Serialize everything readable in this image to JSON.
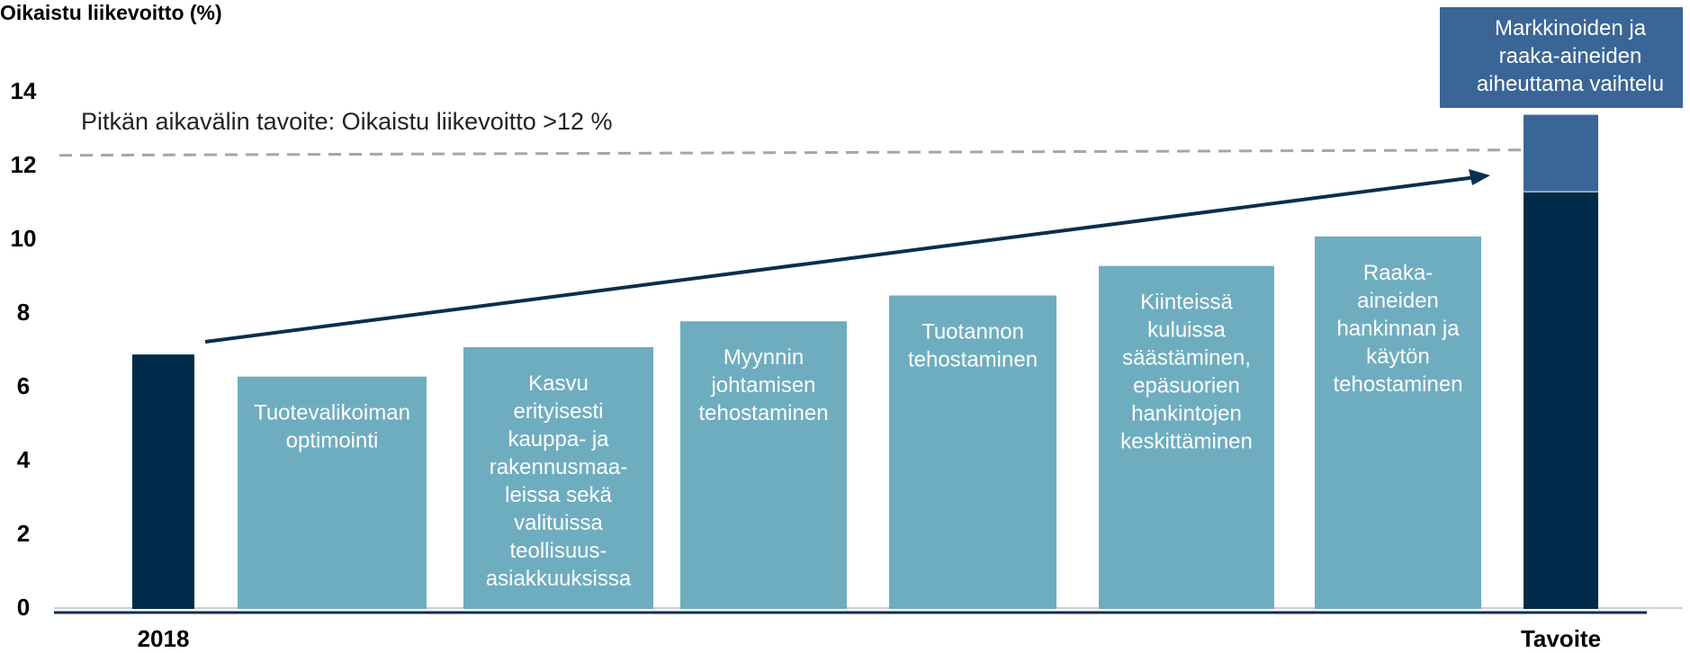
{
  "chart_data": {
    "type": "bar",
    "title": "Oikaistu liikevoitto (%)",
    "annotation": "Pitkän aikavälin  tavoite: Oikaistu liikevoitto >12 %",
    "target_line": 12.3,
    "categories": [
      "2018",
      null,
      null,
      null,
      null,
      null,
      null,
      "Tavoite"
    ],
    "values": [
      6.9,
      6.3,
      7.1,
      7.8,
      8.5,
      9.3,
      10.1,
      11.3
    ],
    "colors": [
      "#002b4a",
      "#6eadbf",
      "#6eadbf",
      "#6eadbf",
      "#6eadbf",
      "#6eadbf",
      "#6eadbf",
      "#002b4a"
    ],
    "bar_labels": [
      null,
      "Tuotevalikoiman\noptimointi",
      "Kasvu\nerityisesti\nkauppa- ja\nrakennusmaa-\nleissa sekä\nvalituissa\nteollisuus-\nasiakkuuksissa",
      "Myynnin\njohtamisen\ntehostaminen",
      "Tuotannon\ntehostaminen",
      "Kiinteissä\nkuluissa\nsäästäminen,\nepäsuorien\nhankintojen\nkeskittäminen",
      "Raaka-\naineiden\nhankinnan ja\nkäytön\ntehostaminen",
      null
    ],
    "top_values": [
      null,
      null,
      null,
      null,
      null,
      null,
      null,
      2.1
    ],
    "top_color": "#3a6597",
    "top_label": "Markkinoiden ja\nraaka-aineiden\naiheuttama vaihtelu",
    "ylim": [
      0,
      14
    ],
    "yticks": [
      0,
      2,
      4,
      6,
      8,
      10,
      12,
      14
    ]
  }
}
